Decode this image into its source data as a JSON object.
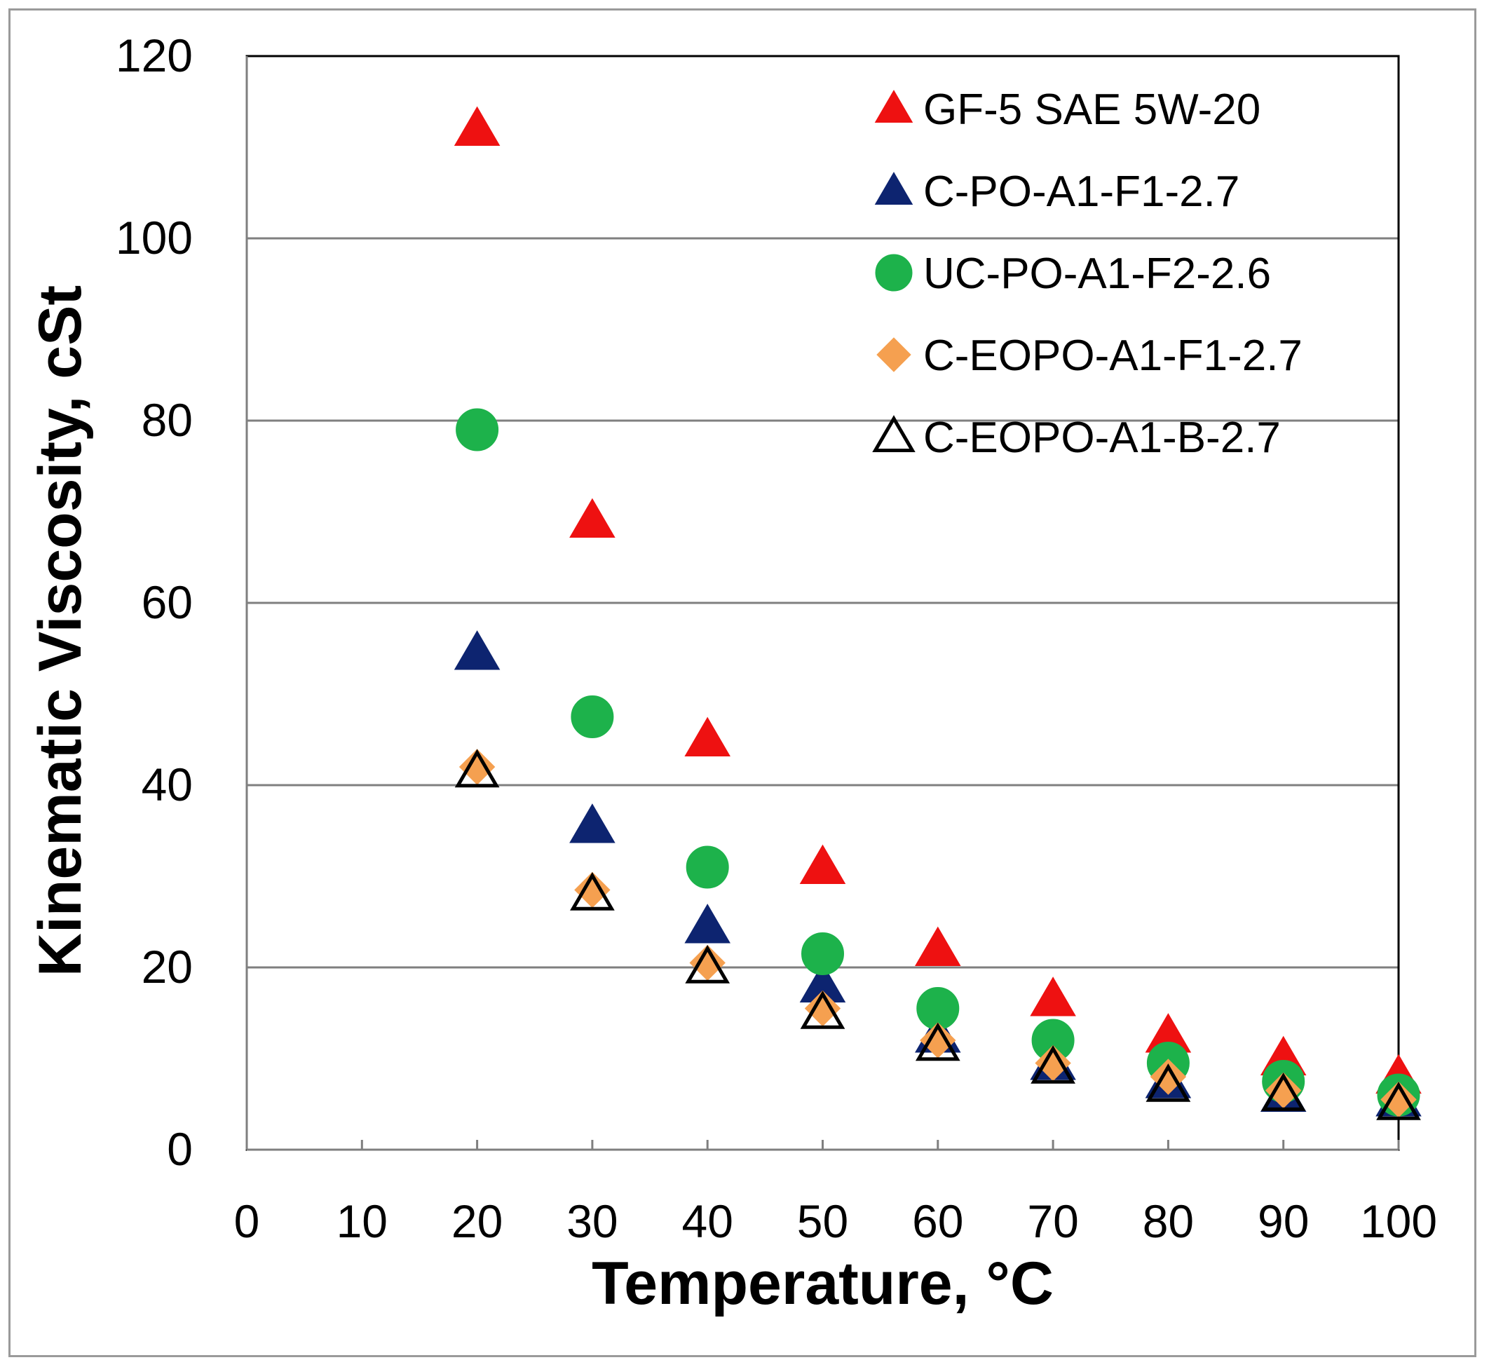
{
  "chart_data": {
    "type": "scatter",
    "xlabel": "Temperature, °C",
    "ylabel": "Kinematic Viscosity, cSt",
    "xlim": [
      0,
      100
    ],
    "ylim": [
      0,
      120
    ],
    "xticks": [
      0,
      10,
      20,
      30,
      40,
      50,
      60,
      70,
      80,
      90,
      100
    ],
    "yticks": [
      0,
      20,
      40,
      60,
      80,
      100,
      120
    ],
    "xtick_labels": [
      "0",
      "10",
      "20",
      "30",
      "40",
      "50",
      "60",
      "70",
      "80",
      "90",
      "100"
    ],
    "ytick_labels": [
      "0",
      "20",
      "40",
      "60",
      "80",
      "100",
      "120"
    ],
    "grid": "horizontal",
    "legend_position": "top-right",
    "x": [
      20,
      30,
      40,
      50,
      60,
      70,
      80,
      90,
      100
    ],
    "series": [
      {
        "name": "GF-5 SAE 5W-20",
        "marker": "triangle",
        "color": "#ee1111",
        "outline": "#ee1111",
        "values": [
          112,
          69,
          45,
          31,
          22,
          16.5,
          12.5,
          10,
          8
        ]
      },
      {
        "name": "C-PO-A1-F1-2.7",
        "marker": "triangle",
        "color": "#0d2470",
        "outline": "#0d2470",
        "values": [
          54.5,
          35.5,
          24.5,
          18,
          12.5,
          9.5,
          7.5,
          6,
          5.5
        ]
      },
      {
        "name": "UC-PO-A1-F2-2.6",
        "marker": "circle",
        "color": "#1db24b",
        "outline": "#1db24b",
        "values": [
          79,
          47.5,
          31,
          21.5,
          15.5,
          12,
          9.5,
          7.5,
          6
        ]
      },
      {
        "name": "C-EOPO-A1-F1-2.7",
        "marker": "diamond",
        "color": "#f5a050",
        "outline": "#f5a050",
        "values": [
          42,
          28.5,
          20.5,
          15.5,
          12,
          9.5,
          8,
          6.5,
          5.5
        ]
      },
      {
        "name": "C-EOPO-A1-B-2.7",
        "marker": "triangle-open",
        "color": "none",
        "outline": "#000000",
        "values": [
          41.5,
          28,
          20,
          15,
          11.5,
          9,
          7,
          6,
          5
        ]
      }
    ]
  }
}
